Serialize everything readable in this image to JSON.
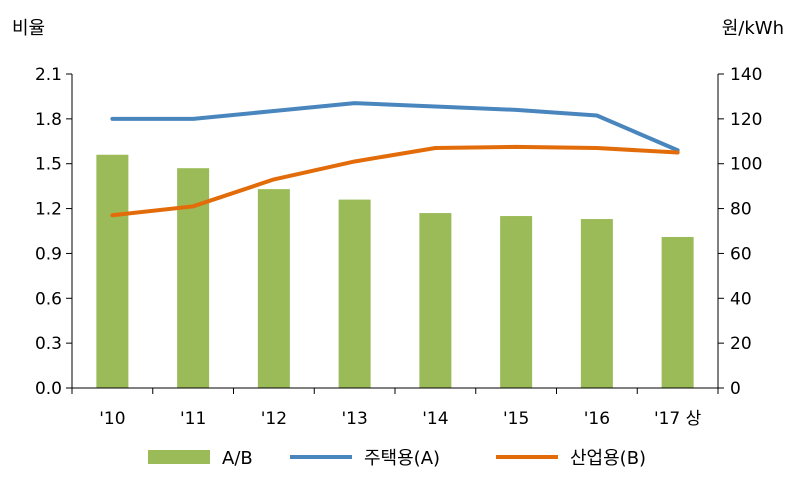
{
  "chart_data": {
    "type": "bar",
    "title": "",
    "categories": [
      "'10",
      "'11",
      "'12",
      "'13",
      "'14",
      "'15",
      "'16",
      "'17 상"
    ],
    "left_axis": {
      "label": "비율",
      "ylim": [
        0,
        2.1
      ],
      "ticks": [
        "0.0",
        "0.3",
        "0.6",
        "0.9",
        "1.2",
        "1.5",
        "1.8",
        "2.1"
      ]
    },
    "right_axis": {
      "label": "원/kWh",
      "ylim": [
        0,
        140
      ],
      "ticks": [
        "0",
        "20",
        "40",
        "60",
        "80",
        "100",
        "120",
        "140"
      ]
    },
    "series": [
      {
        "name": "A/B",
        "kind": "bar",
        "axis": "left",
        "color": "#9bbb59",
        "values": [
          1.56,
          1.47,
          1.33,
          1.26,
          1.17,
          1.15,
          1.13,
          1.01
        ]
      },
      {
        "name": "주택용(A)",
        "kind": "line",
        "axis": "right",
        "color": "#4a86be",
        "values": [
          120,
          120,
          123.5,
          127,
          125.5,
          124,
          121.5,
          106
        ]
      },
      {
        "name": "산업용(B)",
        "kind": "line",
        "axis": "right",
        "color": "#e36c0a",
        "values": [
          77,
          81,
          93,
          101,
          107,
          107.5,
          107,
          105
        ]
      }
    ],
    "legend_position": "bottom",
    "grid": false
  }
}
